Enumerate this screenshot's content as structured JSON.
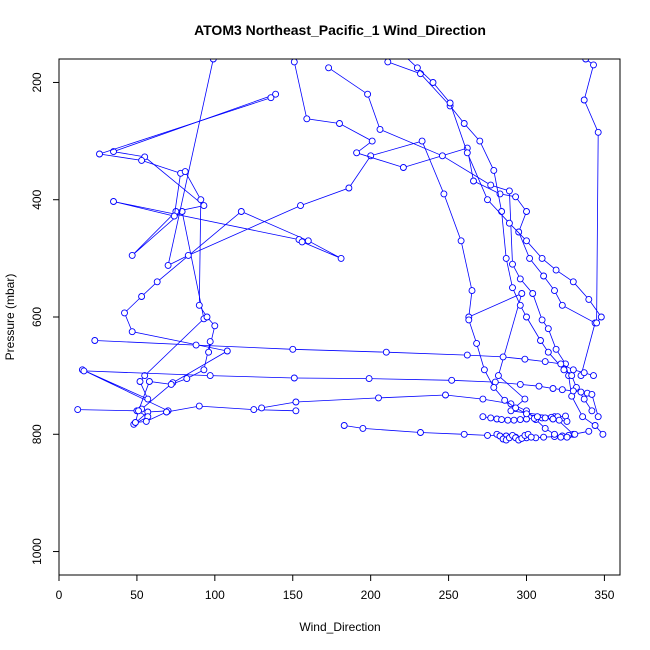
{
  "chart_data": {
    "type": "line",
    "title": "ATOM3 Northeast_Pacific_1 Wind_Direction",
    "xlabel": "Wind_Direction",
    "ylabel": "Pressure (mbar)",
    "xlim": [
      0,
      360
    ],
    "ylim": [
      1040,
      160
    ],
    "y_reversed": true,
    "x_ticks": [
      0,
      50,
      100,
      150,
      200,
      250,
      300,
      350
    ],
    "y_ticks": [
      200,
      400,
      600,
      800,
      1000
    ],
    "grid": false,
    "legend": "none",
    "marker": "open-circle",
    "line_color": "#0000ff",
    "series": [
      {
        "x": [
          139,
          35,
          55,
          93,
          75,
          47,
          79,
          93,
          55,
          52,
          57,
          15,
          70,
          57,
          48,
          57,
          50,
          12
        ],
        "y": [
          220,
          318,
          327,
          410,
          420,
          495,
          420,
          603,
          700,
          710,
          740,
          690,
          760,
          762,
          783,
          770,
          760,
          758
        ]
      },
      {
        "x": [
          136,
          26,
          53,
          78,
          74,
          35,
          154,
          156,
          181,
          160,
          117,
          63,
          53,
          42,
          47,
          108,
          73,
          53
        ],
        "y": [
          226,
          322,
          333,
          355,
          428,
          403,
          468,
          472,
          500,
          470,
          420,
          540,
          565,
          593,
          625,
          658,
          712,
          757
        ]
      },
      {
        "x": [
          99,
          70,
          83,
          155,
          186,
          200,
          233,
          247,
          258,
          265,
          263,
          297,
          282,
          299,
          290,
          318,
          330,
          340
        ],
        "y": [
          160,
          512,
          495,
          410,
          380,
          325,
          300,
          390,
          470,
          555,
          600,
          560,
          700,
          740,
          760,
          770,
          800,
          795
        ]
      },
      {
        "x": [
          81,
          91,
          90,
          95,
          100,
          96,
          97,
          93,
          82,
          72,
          58,
          51,
          49,
          56,
          69,
          90,
          125,
          152
        ],
        "y": [
          352,
          400,
          580,
          600,
          615,
          660,
          642,
          690,
          705,
          715,
          710,
          760,
          780,
          778,
          762,
          752,
          758,
          760
        ]
      },
      {
        "x": [
          151,
          159,
          180,
          201,
          191,
          221,
          262,
          266,
          283,
          293,
          300,
          295,
          302,
          311,
          318,
          323,
          344,
          335
        ],
        "y": [
          165,
          262,
          270,
          300,
          320,
          345,
          312,
          368,
          390,
          395,
          420,
          455,
          500,
          530,
          555,
          580,
          610,
          700
        ]
      },
      {
        "x": [
          173,
          198,
          206,
          246,
          277,
          289,
          291,
          296,
          304,
          310,
          314,
          319,
          325,
          327,
          329,
          336,
          344,
          349
        ],
        "y": [
          175,
          220,
          280,
          325,
          375,
          385,
          510,
          535,
          560,
          605,
          620,
          655,
          680,
          700,
          735,
          770,
          785,
          800
        ]
      },
      {
        "x": [
          211,
          232,
          251,
          260,
          270,
          279,
          284,
          287,
          291,
          296,
          300,
          309,
          314,
          324,
          329,
          332,
          337,
          342
        ],
        "y": [
          165,
          185,
          240,
          270,
          300,
          350,
          420,
          500,
          550,
          580,
          600,
          640,
          660,
          690,
          700,
          720,
          740,
          760
        ]
      },
      {
        "x": [
          222,
          230,
          240,
          251,
          262,
          275,
          289,
          300,
          310,
          319,
          330,
          340,
          348,
          345,
          346,
          337,
          343,
          338
        ],
        "y": [
          155,
          175,
          200,
          235,
          320,
          400,
          440,
          470,
          500,
          520,
          540,
          570,
          600,
          610,
          285,
          230,
          170,
          160
        ]
      },
      {
        "x": [
          16,
          97,
          151,
          199,
          252,
          280,
          296,
          308,
          317,
          323,
          330,
          335,
          339,
          342,
          346
        ],
        "y": [
          692,
          700,
          704,
          705,
          708,
          711,
          715,
          718,
          722,
          724,
          726,
          728,
          730,
          732,
          770
        ]
      },
      {
        "x": [
          23,
          88,
          150,
          210,
          262,
          285,
          299,
          312,
          322,
          330,
          337,
          343
        ],
        "y": [
          640,
          648,
          655,
          660,
          665,
          668,
          672,
          676,
          680,
          690,
          695,
          700
        ]
      },
      {
        "x": [
          183,
          195,
          232,
          260,
          275,
          287,
          293,
          300,
          306,
          311,
          318,
          323,
          327
        ],
        "y": [
          785,
          790,
          797,
          800,
          802,
          803,
          805,
          806,
          806,
          805,
          804,
          803,
          802
        ]
      },
      {
        "x": [
          130,
          152,
          205,
          248,
          272,
          290,
          300,
          306,
          312,
          318,
          322,
          326,
          331
        ],
        "y": [
          755,
          745,
          738,
          733,
          740,
          748,
          760,
          775,
          790,
          800,
          805,
          805,
          800
        ]
      },
      {
        "x": [
          272,
          277,
          281,
          284,
          288,
          292,
          296,
          300,
          305,
          310,
          316,
          320,
          325
        ],
        "y": [
          770,
          772,
          774,
          775,
          776,
          776,
          775,
          774,
          773,
          772,
          771,
          770,
          769
        ]
      },
      {
        "x": [
          263,
          268,
          273,
          279,
          286,
          293,
          300,
          307,
          312,
          317,
          321,
          326
        ],
        "y": [
          605,
          645,
          690,
          720,
          742,
          755,
          765,
          770,
          772,
          774,
          776,
          778
        ]
      },
      {
        "x": [
          281,
          283,
          285,
          287,
          289,
          291,
          293,
          295,
          297,
          299,
          301,
          303
        ],
        "y": [
          800,
          803,
          808,
          810,
          806,
          802,
          806,
          810,
          807,
          802,
          800,
          805
        ]
      }
    ]
  }
}
